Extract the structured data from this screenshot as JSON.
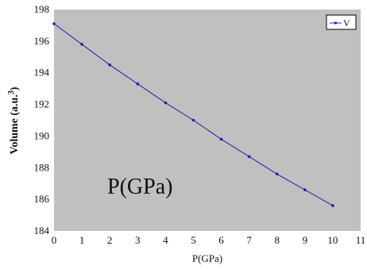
{
  "chart_data": {
    "type": "line",
    "title": "",
    "xlabel": "P(GPa)",
    "ylabel": "Volume (a.u.",
    "ylabel_sup": "3",
    "ylabel_end": ")",
    "xlim": [
      0,
      11
    ],
    "ylim": [
      184,
      198
    ],
    "x_ticks": [
      0,
      1,
      2,
      3,
      4,
      5,
      6,
      7,
      8,
      9,
      10,
      11
    ],
    "y_ticks": [
      184,
      186,
      188,
      190,
      192,
      194,
      196,
      198
    ],
    "grid": false,
    "legend_position": "top-right",
    "annotation": "P(GPa)",
    "series": [
      {
        "name": "V",
        "color": "#1f1fa8",
        "x": [
          0,
          1,
          2,
          3,
          4,
          5,
          6,
          7,
          8,
          9,
          10
        ],
        "y": [
          197.1,
          195.8,
          194.5,
          193.3,
          192.1,
          191.0,
          189.8,
          188.7,
          187.6,
          186.6,
          185.6
        ]
      }
    ],
    "plot_background": "#c0c0c0"
  }
}
